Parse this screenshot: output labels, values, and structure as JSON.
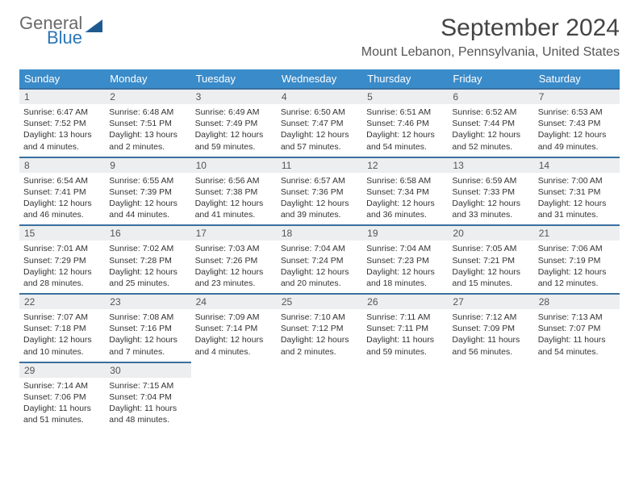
{
  "logo": {
    "word1": "General",
    "word2": "Blue"
  },
  "title": "September 2024",
  "location": "Mount Lebanon, Pennsylvania, United States",
  "colors": {
    "header_bg": "#3a8bc9",
    "header_text": "#ffffff",
    "row_border": "#3a70a0",
    "daynum_bg": "#eceeef",
    "body_text": "#333333",
    "logo_gray": "#6a6a6a",
    "logo_blue": "#2a76b8",
    "page_bg": "#ffffff"
  },
  "weekdays": [
    "Sunday",
    "Monday",
    "Tuesday",
    "Wednesday",
    "Thursday",
    "Friday",
    "Saturday"
  ],
  "days": [
    {
      "n": "1",
      "sr": "Sunrise: 6:47 AM",
      "ss": "Sunset: 7:52 PM",
      "dl": "Daylight: 13 hours and 4 minutes."
    },
    {
      "n": "2",
      "sr": "Sunrise: 6:48 AM",
      "ss": "Sunset: 7:51 PM",
      "dl": "Daylight: 13 hours and 2 minutes."
    },
    {
      "n": "3",
      "sr": "Sunrise: 6:49 AM",
      "ss": "Sunset: 7:49 PM",
      "dl": "Daylight: 12 hours and 59 minutes."
    },
    {
      "n": "4",
      "sr": "Sunrise: 6:50 AM",
      "ss": "Sunset: 7:47 PM",
      "dl": "Daylight: 12 hours and 57 minutes."
    },
    {
      "n": "5",
      "sr": "Sunrise: 6:51 AM",
      "ss": "Sunset: 7:46 PM",
      "dl": "Daylight: 12 hours and 54 minutes."
    },
    {
      "n": "6",
      "sr": "Sunrise: 6:52 AM",
      "ss": "Sunset: 7:44 PM",
      "dl": "Daylight: 12 hours and 52 minutes."
    },
    {
      "n": "7",
      "sr": "Sunrise: 6:53 AM",
      "ss": "Sunset: 7:43 PM",
      "dl": "Daylight: 12 hours and 49 minutes."
    },
    {
      "n": "8",
      "sr": "Sunrise: 6:54 AM",
      "ss": "Sunset: 7:41 PM",
      "dl": "Daylight: 12 hours and 46 minutes."
    },
    {
      "n": "9",
      "sr": "Sunrise: 6:55 AM",
      "ss": "Sunset: 7:39 PM",
      "dl": "Daylight: 12 hours and 44 minutes."
    },
    {
      "n": "10",
      "sr": "Sunrise: 6:56 AM",
      "ss": "Sunset: 7:38 PM",
      "dl": "Daylight: 12 hours and 41 minutes."
    },
    {
      "n": "11",
      "sr": "Sunrise: 6:57 AM",
      "ss": "Sunset: 7:36 PM",
      "dl": "Daylight: 12 hours and 39 minutes."
    },
    {
      "n": "12",
      "sr": "Sunrise: 6:58 AM",
      "ss": "Sunset: 7:34 PM",
      "dl": "Daylight: 12 hours and 36 minutes."
    },
    {
      "n": "13",
      "sr": "Sunrise: 6:59 AM",
      "ss": "Sunset: 7:33 PM",
      "dl": "Daylight: 12 hours and 33 minutes."
    },
    {
      "n": "14",
      "sr": "Sunrise: 7:00 AM",
      "ss": "Sunset: 7:31 PM",
      "dl": "Daylight: 12 hours and 31 minutes."
    },
    {
      "n": "15",
      "sr": "Sunrise: 7:01 AM",
      "ss": "Sunset: 7:29 PM",
      "dl": "Daylight: 12 hours and 28 minutes."
    },
    {
      "n": "16",
      "sr": "Sunrise: 7:02 AM",
      "ss": "Sunset: 7:28 PM",
      "dl": "Daylight: 12 hours and 25 minutes."
    },
    {
      "n": "17",
      "sr": "Sunrise: 7:03 AM",
      "ss": "Sunset: 7:26 PM",
      "dl": "Daylight: 12 hours and 23 minutes."
    },
    {
      "n": "18",
      "sr": "Sunrise: 7:04 AM",
      "ss": "Sunset: 7:24 PM",
      "dl": "Daylight: 12 hours and 20 minutes."
    },
    {
      "n": "19",
      "sr": "Sunrise: 7:04 AM",
      "ss": "Sunset: 7:23 PM",
      "dl": "Daylight: 12 hours and 18 minutes."
    },
    {
      "n": "20",
      "sr": "Sunrise: 7:05 AM",
      "ss": "Sunset: 7:21 PM",
      "dl": "Daylight: 12 hours and 15 minutes."
    },
    {
      "n": "21",
      "sr": "Sunrise: 7:06 AM",
      "ss": "Sunset: 7:19 PM",
      "dl": "Daylight: 12 hours and 12 minutes."
    },
    {
      "n": "22",
      "sr": "Sunrise: 7:07 AM",
      "ss": "Sunset: 7:18 PM",
      "dl": "Daylight: 12 hours and 10 minutes."
    },
    {
      "n": "23",
      "sr": "Sunrise: 7:08 AM",
      "ss": "Sunset: 7:16 PM",
      "dl": "Daylight: 12 hours and 7 minutes."
    },
    {
      "n": "24",
      "sr": "Sunrise: 7:09 AM",
      "ss": "Sunset: 7:14 PM",
      "dl": "Daylight: 12 hours and 4 minutes."
    },
    {
      "n": "25",
      "sr": "Sunrise: 7:10 AM",
      "ss": "Sunset: 7:12 PM",
      "dl": "Daylight: 12 hours and 2 minutes."
    },
    {
      "n": "26",
      "sr": "Sunrise: 7:11 AM",
      "ss": "Sunset: 7:11 PM",
      "dl": "Daylight: 11 hours and 59 minutes."
    },
    {
      "n": "27",
      "sr": "Sunrise: 7:12 AM",
      "ss": "Sunset: 7:09 PM",
      "dl": "Daylight: 11 hours and 56 minutes."
    },
    {
      "n": "28",
      "sr": "Sunrise: 7:13 AM",
      "ss": "Sunset: 7:07 PM",
      "dl": "Daylight: 11 hours and 54 minutes."
    },
    {
      "n": "29",
      "sr": "Sunrise: 7:14 AM",
      "ss": "Sunset: 7:06 PM",
      "dl": "Daylight: 11 hours and 51 minutes."
    },
    {
      "n": "30",
      "sr": "Sunrise: 7:15 AM",
      "ss": "Sunset: 7:04 PM",
      "dl": "Daylight: 11 hours and 48 minutes."
    }
  ]
}
